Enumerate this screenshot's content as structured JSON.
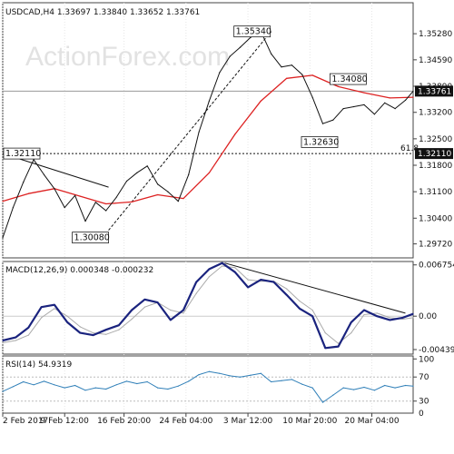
{
  "chart_data": [
    {
      "type": "line",
      "panel": "price",
      "title": "USDCAD,H4  1.33697 1.33840 1.33652 1.33761",
      "watermark": "ActionForex.com",
      "ylim": [
        1.2935,
        1.361
      ],
      "y_ticks": [
        "1.35280",
        "1.34590",
        "1.33890",
        "1.33200",
        "1.32500",
        "1.31800",
        "1.31100",
        "1.30400",
        "1.29720"
      ],
      "y_tick_values": [
        1.3528,
        1.3459,
        1.3389,
        1.332,
        1.325,
        1.318,
        1.311,
        1.304,
        1.2972
      ],
      "x_labels": [
        "2 Feb 2017",
        "9 Feb 12:00",
        "16 Feb 20:00",
        "24 Feb 04:00",
        "3 Mar 12:00",
        "10 Mar 20:00",
        "20 Mar 04:00"
      ],
      "x_label_pos": [
        0,
        24,
        47,
        71,
        95,
        119,
        143
      ],
      "n_bars": 160,
      "series": [
        {
          "name": "",
          "color": "#111111",
          "x": [
            0,
            4,
            8,
            12,
            16,
            20,
            24,
            28,
            32,
            36,
            40,
            44,
            48,
            52,
            56,
            60,
            64,
            68,
            72,
            76,
            80,
            84,
            88,
            92,
            96,
            100,
            104,
            108,
            112,
            116,
            120,
            124,
            128,
            132,
            136,
            140,
            144,
            148,
            152,
            156,
            159
          ],
          "values": [
            1.2988,
            1.3068,
            1.3135,
            1.3195,
            1.3155,
            1.3118,
            1.3068,
            1.31,
            1.3032,
            1.3082,
            1.306,
            1.3095,
            1.3138,
            1.316,
            1.3178,
            1.313,
            1.311,
            1.3085,
            1.3155,
            1.3268,
            1.335,
            1.3425,
            1.3468,
            1.3492,
            1.3518,
            1.3534,
            1.3475,
            1.344,
            1.3445,
            1.342,
            1.336,
            1.329,
            1.33,
            1.333,
            1.3335,
            1.334,
            1.3315,
            1.3345,
            1.333,
            1.3352,
            1.3376
          ]
        },
        {
          "name": "",
          "color": "#dd2222",
          "x": [
            0,
            10,
            20,
            30,
            40,
            50,
            60,
            70,
            80,
            90,
            100,
            110,
            120,
            130,
            140,
            150,
            159
          ],
          "values": [
            1.3085,
            1.3105,
            1.3118,
            1.3098,
            1.3078,
            1.3083,
            1.3102,
            1.3092,
            1.316,
            1.3262,
            1.335,
            1.341,
            1.3418,
            1.3388,
            1.3372,
            1.3358,
            1.336
          ]
        }
      ],
      "h_lines": [
        {
          "value": 1.3376,
          "color": "#999999"
        },
        {
          "value": 1.3211,
          "color": "#111111",
          "dashed": true,
          "label": "61.8"
        }
      ],
      "trendlines": [
        {
          "x1": 0,
          "y1": 1.3211,
          "x2": 41,
          "y2": 1.3122,
          "color": "#111111",
          "dashed": false
        },
        {
          "x1": 41,
          "y1": 1.3008,
          "x2": 104,
          "y2": 1.3534,
          "color": "#111111",
          "dashed": true
        }
      ],
      "price_boxes": [
        {
          "text": "1.35340",
          "x": 104,
          "value": 1.3534,
          "anchor": "right"
        },
        {
          "text": "1.34080",
          "x": 131,
          "value": 1.3408,
          "anchor": "left"
        },
        {
          "text": "1.32630",
          "x": 121,
          "value": 1.3263,
          "anchor": "left-below"
        },
        {
          "text": "1.30080",
          "x": 41,
          "value": 1.3008,
          "anchor": "right-below"
        },
        {
          "text": "1.32110",
          "x": 0,
          "value": 1.3211,
          "anchor": "left-edge"
        }
      ],
      "current_tag": {
        "text": "1.33761",
        "value": 1.33761
      },
      "fib_tag": {
        "text": "1.32110",
        "value": 1.3211
      }
    },
    {
      "type": "line",
      "panel": "macd",
      "title": "MACD(12,26,9) 0.000348 -0.000232",
      "ylim": [
        -0.005,
        0.0072
      ],
      "y_ticks": [
        "0.006754",
        "0.00",
        "-0.004399"
      ],
      "y_tick_values": [
        0.006754,
        0.0,
        -0.004399
      ],
      "series": [
        {
          "name": "",
          "color": "#1a237e",
          "x": [
            0,
            5,
            10,
            15,
            20,
            25,
            30,
            35,
            40,
            45,
            50,
            55,
            60,
            65,
            70,
            75,
            80,
            85,
            90,
            95,
            100,
            105,
            110,
            115,
            120,
            125,
            130,
            135,
            140,
            145,
            150,
            155,
            159
          ],
          "values": [
            -0.0032,
            -0.0028,
            -0.0015,
            0.0012,
            0.0015,
            -0.0008,
            -0.0022,
            -0.0025,
            -0.0018,
            -0.0012,
            0.0008,
            0.0022,
            0.0018,
            -0.0005,
            0.0008,
            0.0045,
            0.0062,
            0.007,
            0.0058,
            0.0038,
            0.0048,
            0.0045,
            0.0028,
            0.001,
            0.0,
            -0.0042,
            -0.004,
            -0.0008,
            0.0008,
            0.0,
            -0.0005,
            -0.0002,
            0.0003
          ]
        },
        {
          "name": "",
          "color": "#aaaaaa",
          "x": [
            0,
            5,
            10,
            15,
            20,
            25,
            30,
            35,
            40,
            45,
            50,
            55,
            60,
            65,
            70,
            75,
            80,
            85,
            90,
            95,
            100,
            105,
            110,
            115,
            120,
            125,
            130,
            135,
            140,
            145,
            150,
            155,
            159
          ],
          "values": [
            -0.0035,
            -0.0032,
            -0.0025,
            -0.0002,
            0.001,
            0.0,
            -0.0014,
            -0.0022,
            -0.0024,
            -0.0018,
            -0.0004,
            0.0012,
            0.0018,
            0.0008,
            0.0004,
            0.003,
            0.0052,
            0.0066,
            0.0064,
            0.0048,
            0.0046,
            0.0046,
            0.0036,
            0.002,
            0.0008,
            -0.0022,
            -0.0036,
            -0.0022,
            0.0002,
            0.0004,
            -0.0002,
            -0.0004,
            -0.0002
          ]
        }
      ],
      "trendlines": [
        {
          "x1": 86,
          "y1": 0.007,
          "x2": 156,
          "y2": 0.0004,
          "color": "#111111",
          "dashed": false
        }
      ]
    },
    {
      "type": "line",
      "panel": "rsi",
      "title": "RSI(14) 54.9319",
      "ylim": [
        10,
        105
      ],
      "y_ticks": [
        "100",
        "70",
        "30",
        "0"
      ],
      "y_tick_values": [
        100,
        70,
        30,
        0
      ],
      "levels": [
        70,
        30
      ],
      "series": [
        {
          "name": "",
          "color": "#2f7fb8",
          "x": [
            0,
            4,
            8,
            12,
            16,
            20,
            24,
            28,
            32,
            36,
            40,
            44,
            48,
            52,
            56,
            60,
            64,
            68,
            72,
            76,
            80,
            84,
            88,
            92,
            96,
            100,
            104,
            108,
            112,
            116,
            120,
            124,
            128,
            132,
            136,
            140,
            144,
            148,
            152,
            156,
            159
          ],
          "values": [
            46,
            54,
            62,
            57,
            63,
            57,
            52,
            56,
            48,
            52,
            50,
            57,
            63,
            59,
            62,
            52,
            50,
            55,
            63,
            74,
            79,
            76,
            72,
            70,
            73,
            76,
            62,
            64,
            66,
            58,
            52,
            28,
            40,
            52,
            49,
            53,
            48,
            56,
            52,
            56,
            55
          ]
        }
      ]
    }
  ]
}
